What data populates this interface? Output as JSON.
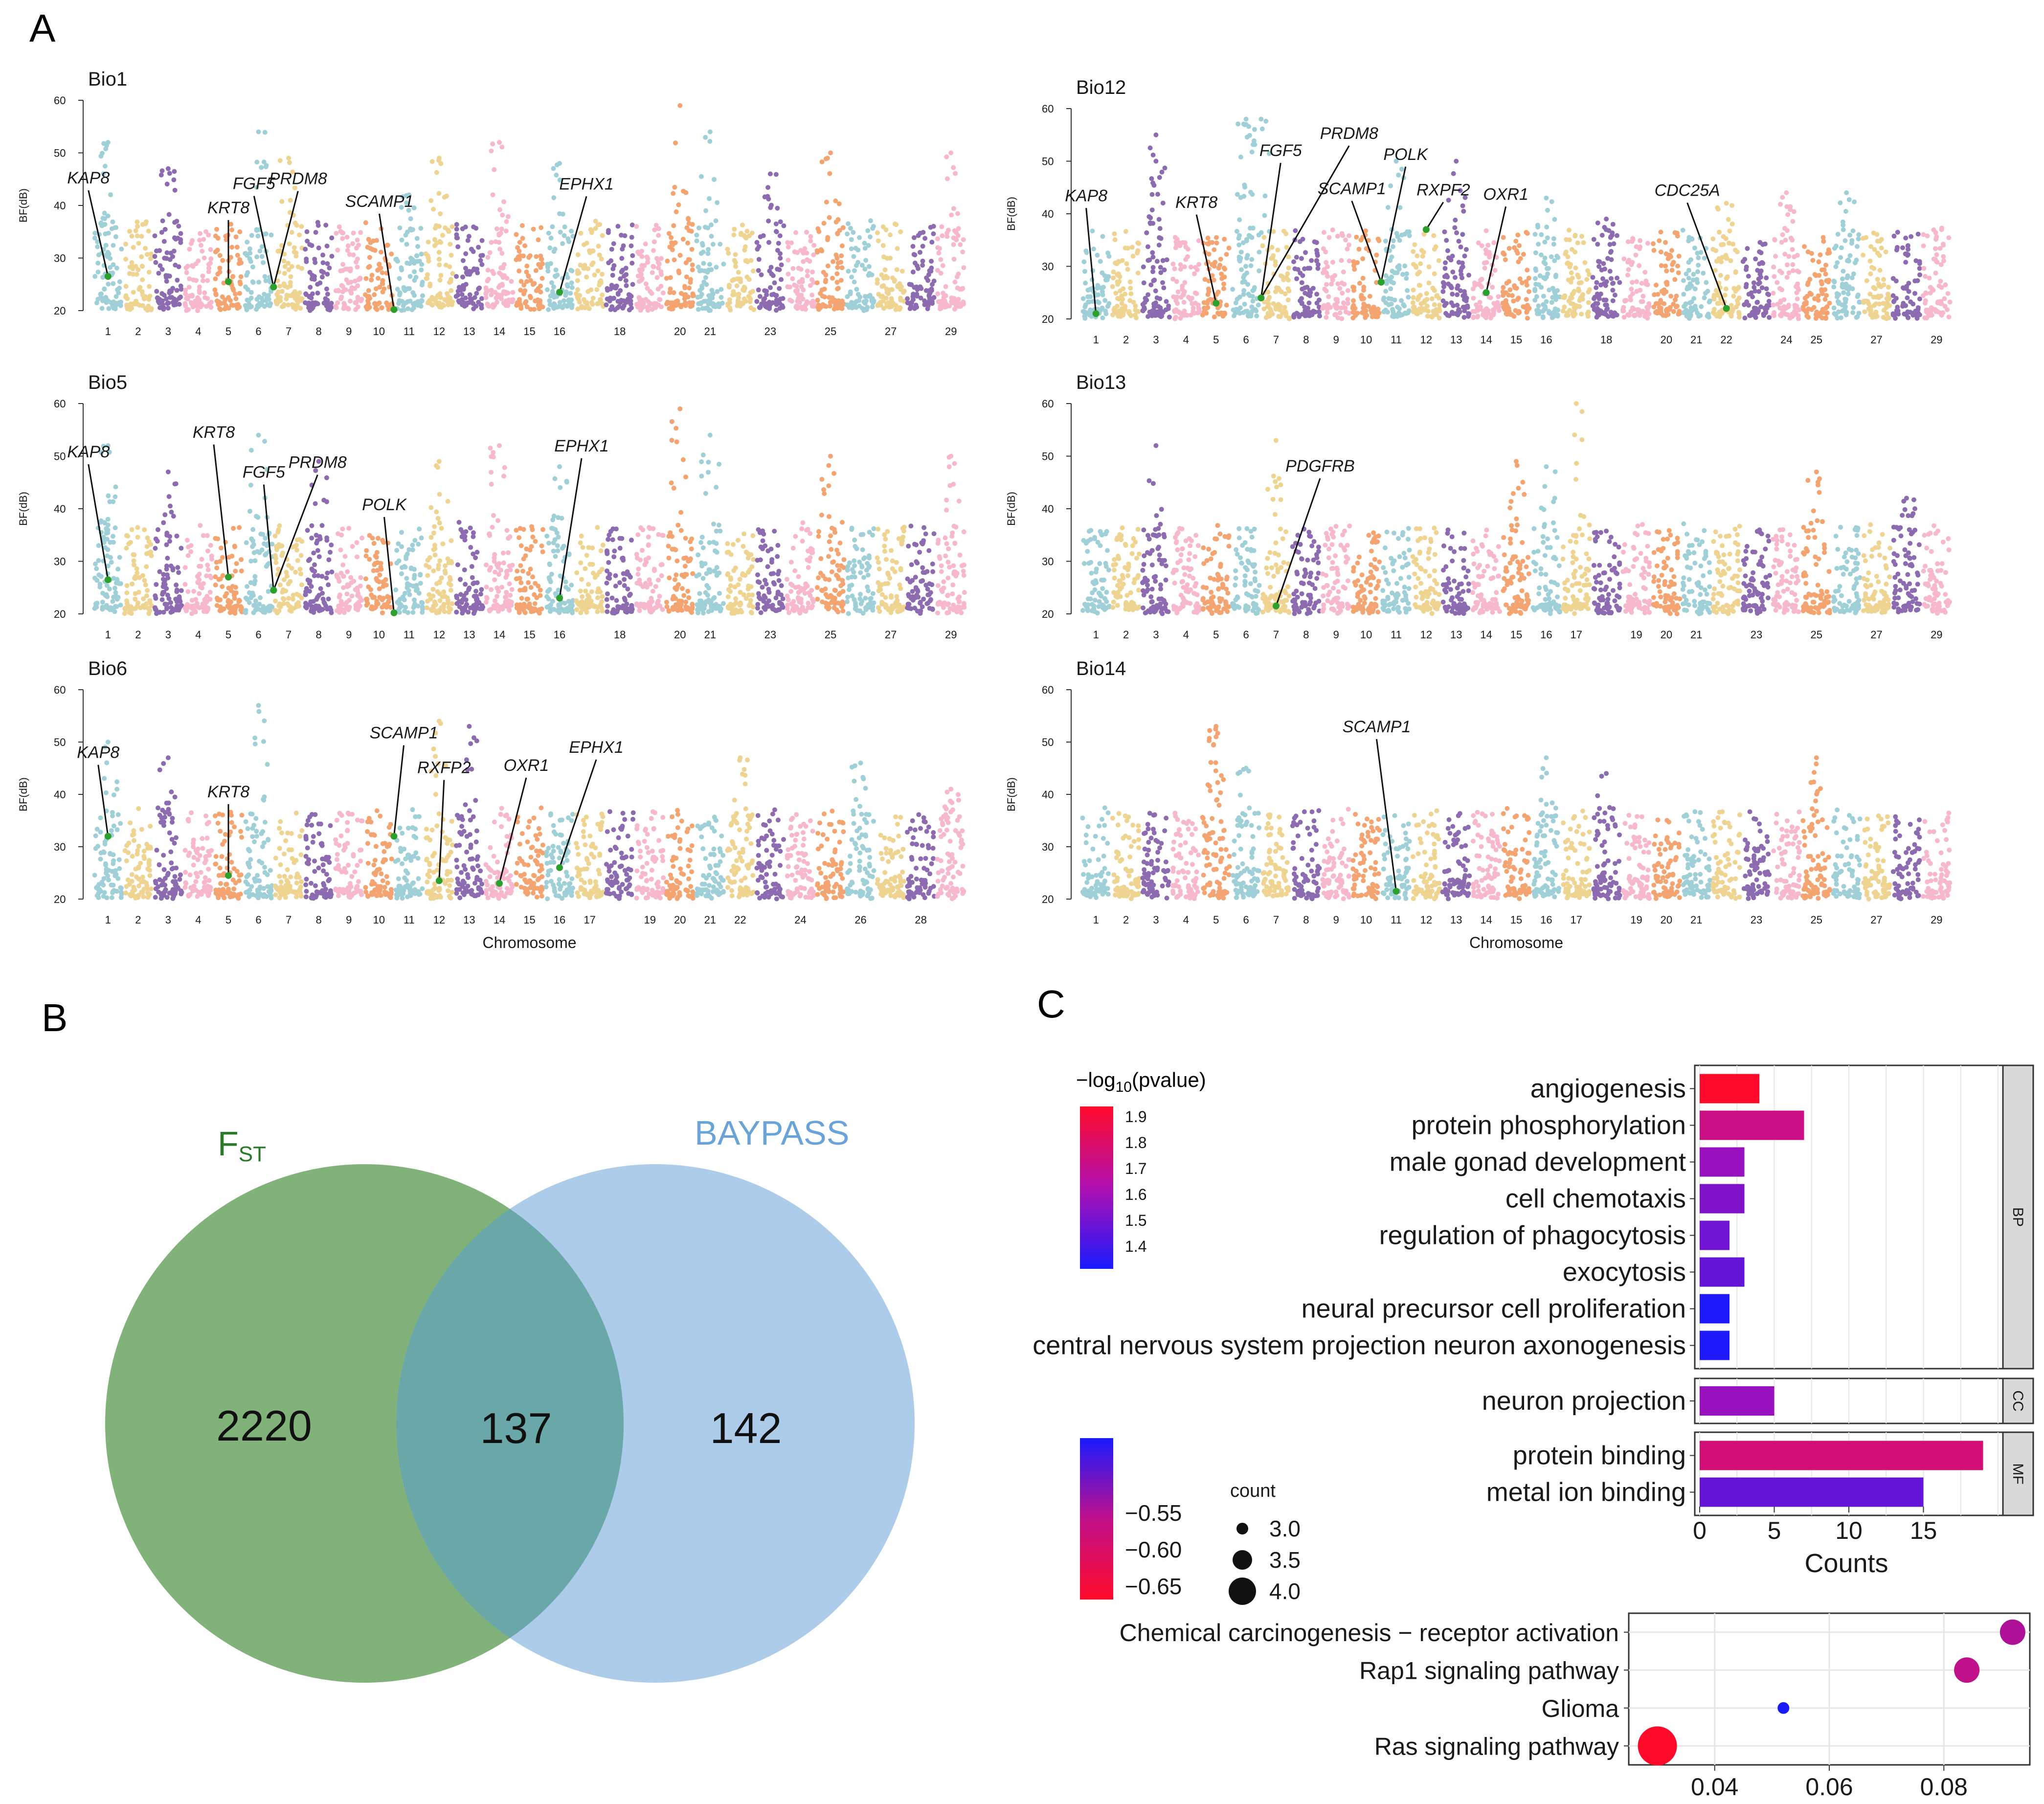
{
  "panel_labels": {
    "a": "A",
    "b": "B",
    "c": "C"
  },
  "colors": {
    "chrom_palette": [
      "#9fd0d8",
      "#efd390",
      "#8c6bb1",
      "#f7b8cf",
      "#f4a470"
    ],
    "fst_circle": "#6ba563",
    "baypass_circle": "#9ec3e6",
    "overlap": "#6aa7a8",
    "fst_label": "#2a7a2a",
    "baypass_label": "#6aa3d8",
    "gene_point": "#2ca02c"
  },
  "chart_data": [
    {
      "id": "bio1",
      "type": "scatter",
      "title": "Bio1",
      "ylabel": "BF(dB)",
      "xlabel": "",
      "ylim": [
        20,
        60
      ],
      "yticks": [
        20,
        30,
        40,
        50,
        60
      ],
      "xticks": [
        "1",
        "2",
        "3",
        "4",
        "5",
        "6",
        "7",
        "8",
        "9",
        "10",
        "11",
        "12",
        "13",
        "14",
        "15",
        "16",
        "18",
        "20",
        "21",
        "23",
        "25",
        "27",
        "29"
      ],
      "tick_pos": [
        1,
        2,
        3,
        4,
        5,
        6,
        7,
        8,
        9,
        10,
        11,
        12,
        13,
        14,
        15,
        16,
        18,
        20,
        21,
        23,
        25,
        27,
        29
      ],
      "n_chrom": 29,
      "peaks": [
        {
          "chrom": 1,
          "bf": 38
        },
        {
          "chrom": 1,
          "bf": 52
        },
        {
          "chrom": 3,
          "bf": 47
        },
        {
          "chrom": 6,
          "bf": 54
        },
        {
          "chrom": 7,
          "bf": 49
        },
        {
          "chrom": 11,
          "bf": 42
        },
        {
          "chrom": 12,
          "bf": 49
        },
        {
          "chrom": 14,
          "bf": 52
        },
        {
          "chrom": 16,
          "bf": 48
        },
        {
          "chrom": 20,
          "bf": 59
        },
        {
          "chrom": 21,
          "bf": 54
        },
        {
          "chrom": 23,
          "bf": 46
        },
        {
          "chrom": 25,
          "bf": 50
        },
        {
          "chrom": 29,
          "bf": 50
        }
      ],
      "genes": [
        {
          "name": "KAP8",
          "chrom": 1,
          "bf": 26.5
        },
        {
          "name": "KRT8",
          "chrom": 5,
          "bf": 25.5
        },
        {
          "name": "FGF5",
          "chrom": 6.5,
          "bf": 24.5
        },
        {
          "name": "PRDM8",
          "chrom": 6.5,
          "bf": 24.5
        },
        {
          "name": "SCAMP1",
          "chrom": 10.5,
          "bf": 20.2
        },
        {
          "name": "EPHX1",
          "chrom": 16,
          "bf": 23.5
        }
      ]
    },
    {
      "id": "bio12",
      "type": "scatter",
      "title": "Bio12",
      "ylabel": "BF(dB)",
      "xlabel": "",
      "ylim": [
        20,
        60
      ],
      "yticks": [
        20,
        30,
        40,
        50,
        60
      ],
      "xticks": [
        "1",
        "2",
        "3",
        "4",
        "5",
        "6",
        "7",
        "8",
        "9",
        "10",
        "11",
        "12",
        "13",
        "14",
        "15",
        "16",
        "18",
        "20",
        "21",
        "22",
        "24",
        "25",
        "27",
        "29"
      ],
      "tick_pos": [
        1,
        2,
        3,
        4,
        5,
        6,
        7,
        8,
        9,
        10,
        11,
        12,
        13,
        14,
        15,
        16,
        18,
        20,
        21,
        22,
        24,
        25,
        27,
        29
      ],
      "n_chrom": 29,
      "peaks": [
        {
          "chrom": 3,
          "bf": 55
        },
        {
          "chrom": 3,
          "bf": 50
        },
        {
          "chrom": 6,
          "bf": 58
        },
        {
          "chrom": 6,
          "bf": 57
        },
        {
          "chrom": 6.5,
          "bf": 58
        },
        {
          "chrom": 11,
          "bf": 50
        },
        {
          "chrom": 13,
          "bf": 50
        },
        {
          "chrom": 16,
          "bf": 43
        },
        {
          "chrom": 18,
          "bf": 39
        },
        {
          "chrom": 22,
          "bf": 42
        },
        {
          "chrom": 24,
          "bf": 44
        },
        {
          "chrom": 26,
          "bf": 44
        }
      ],
      "genes": [
        {
          "name": "KAP8",
          "chrom": 1,
          "bf": 21
        },
        {
          "name": "KRT8",
          "chrom": 5,
          "bf": 23
        },
        {
          "name": "FGF5",
          "chrom": 6.5,
          "bf": 24
        },
        {
          "name": "PRDM8",
          "chrom": 6.5,
          "bf": 24
        },
        {
          "name": "SCAMP1",
          "chrom": 10.5,
          "bf": 27
        },
        {
          "name": "POLK",
          "chrom": 10.5,
          "bf": 27
        },
        {
          "name": "RXPF2",
          "chrom": 12,
          "bf": 37
        },
        {
          "name": "OXR1",
          "chrom": 14,
          "bf": 25
        },
        {
          "name": "CDC25A",
          "chrom": 22,
          "bf": 22
        }
      ]
    },
    {
      "id": "bio5",
      "type": "scatter",
      "title": "Bio5",
      "ylabel": "BF(dB)",
      "xlabel": "",
      "ylim": [
        20,
        60
      ],
      "yticks": [
        20,
        30,
        40,
        50,
        60
      ],
      "xticks": [
        "1",
        "2",
        "3",
        "4",
        "5",
        "6",
        "7",
        "8",
        "9",
        "10",
        "11",
        "12",
        "13",
        "14",
        "15",
        "16",
        "18",
        "20",
        "21",
        "23",
        "25",
        "27",
        "29"
      ],
      "tick_pos": [
        1,
        2,
        3,
        4,
        5,
        6,
        7,
        8,
        9,
        10,
        11,
        12,
        13,
        14,
        15,
        16,
        18,
        20,
        21,
        23,
        25,
        27,
        29
      ],
      "n_chrom": 29,
      "peaks": [
        {
          "chrom": 1,
          "bf": 38
        },
        {
          "chrom": 1,
          "bf": 52
        },
        {
          "chrom": 3,
          "bf": 47
        },
        {
          "chrom": 6,
          "bf": 54
        },
        {
          "chrom": 8,
          "bf": 49
        },
        {
          "chrom": 12,
          "bf": 49
        },
        {
          "chrom": 14,
          "bf": 52
        },
        {
          "chrom": 16,
          "bf": 48
        },
        {
          "chrom": 20,
          "bf": 59
        },
        {
          "chrom": 21,
          "bf": 54
        },
        {
          "chrom": 25,
          "bf": 50
        },
        {
          "chrom": 29,
          "bf": 50
        }
      ],
      "genes": [
        {
          "name": "KAP8",
          "chrom": 1,
          "bf": 26.5
        },
        {
          "name": "KRT8",
          "chrom": 5,
          "bf": 27
        },
        {
          "name": "FGF5",
          "chrom": 6.5,
          "bf": 24.5
        },
        {
          "name": "PRDM8",
          "chrom": 6.5,
          "bf": 24.5
        },
        {
          "name": "POLK",
          "chrom": 10.5,
          "bf": 20.2
        },
        {
          "name": "EPHX1",
          "chrom": 16,
          "bf": 23
        }
      ]
    },
    {
      "id": "bio13",
      "type": "scatter",
      "title": "Bio13",
      "ylabel": "BF(dB)",
      "xlabel": "",
      "ylim": [
        20,
        60
      ],
      "yticks": [
        20,
        30,
        40,
        50,
        60
      ],
      "xticks": [
        "1",
        "2",
        "3",
        "4",
        "5",
        "6",
        "7",
        "8",
        "9",
        "10",
        "11",
        "12",
        "13",
        "14",
        "15",
        "16",
        "17",
        "19",
        "20",
        "21",
        "23",
        "25",
        "27",
        "29"
      ],
      "tick_pos": [
        1,
        2,
        3,
        4,
        5,
        6,
        7,
        8,
        9,
        10,
        11,
        12,
        13,
        14,
        15,
        16,
        17,
        19,
        20,
        21,
        23,
        25,
        27,
        29
      ],
      "n_chrom": 29,
      "peaks": [
        {
          "chrom": 3,
          "bf": 52
        },
        {
          "chrom": 7,
          "bf": 53
        },
        {
          "chrom": 15,
          "bf": 49
        },
        {
          "chrom": 16,
          "bf": 48
        },
        {
          "chrom": 17,
          "bf": 60
        },
        {
          "chrom": 25,
          "bf": 47
        },
        {
          "chrom": 28,
          "bf": 42
        }
      ],
      "genes": [
        {
          "name": "PDGFRB",
          "chrom": 7,
          "bf": 21.5
        }
      ]
    },
    {
      "id": "bio6",
      "type": "scatter",
      "title": "Bio6",
      "ylabel": "BF(dB)",
      "xlabel": "Chromosome",
      "ylim": [
        20,
        60
      ],
      "yticks": [
        20,
        30,
        40,
        50,
        60
      ],
      "xticks": [
        "1",
        "2",
        "3",
        "4",
        "5",
        "6",
        "7",
        "8",
        "9",
        "10",
        "11",
        "12",
        "13",
        "14",
        "15",
        "16",
        "17",
        "19",
        "20",
        "21",
        "22",
        "24",
        "26",
        "28"
      ],
      "tick_pos": [
        1,
        2,
        3,
        4,
        5,
        6,
        7,
        8,
        9,
        10,
        11,
        12,
        13,
        14,
        15,
        16,
        17,
        19,
        20,
        21,
        22,
        24,
        26,
        28
      ],
      "n_chrom": 29,
      "peaks": [
        {
          "chrom": 1,
          "bf": 50
        },
        {
          "chrom": 3,
          "bf": 47
        },
        {
          "chrom": 6,
          "bf": 57
        },
        {
          "chrom": 12,
          "bf": 54
        },
        {
          "chrom": 13,
          "bf": 53
        },
        {
          "chrom": 22,
          "bf": 47
        },
        {
          "chrom": 26,
          "bf": 46
        },
        {
          "chrom": 29,
          "bf": 41
        }
      ],
      "genes": [
        {
          "name": "KAP8",
          "chrom": 1,
          "bf": 32
        },
        {
          "name": "KRT8",
          "chrom": 5,
          "bf": 24.5
        },
        {
          "name": "SCAMP1",
          "chrom": 10.5,
          "bf": 32
        },
        {
          "name": "RXFP2",
          "chrom": 12,
          "bf": 23.5
        },
        {
          "name": "OXR1",
          "chrom": 14,
          "bf": 23
        },
        {
          "name": "EPHX1",
          "chrom": 16,
          "bf": 26
        }
      ]
    },
    {
      "id": "bio14",
      "type": "scatter",
      "title": "Bio14",
      "ylabel": "BF(dB)",
      "xlabel": "Chromosome",
      "ylim": [
        20,
        60
      ],
      "yticks": [
        20,
        30,
        40,
        50,
        60
      ],
      "xticks": [
        "1",
        "2",
        "3",
        "4",
        "5",
        "6",
        "7",
        "8",
        "9",
        "10",
        "11",
        "12",
        "13",
        "14",
        "15",
        "16",
        "17",
        "19",
        "20",
        "21",
        "23",
        "25",
        "27",
        "29"
      ],
      "tick_pos": [
        1,
        2,
        3,
        4,
        5,
        6,
        7,
        8,
        9,
        10,
        11,
        12,
        13,
        14,
        15,
        16,
        17,
        19,
        20,
        21,
        23,
        25,
        27,
        29
      ],
      "n_chrom": 29,
      "peaks": [
        {
          "chrom": 5,
          "bf": 53
        },
        {
          "chrom": 5,
          "bf": 51
        },
        {
          "chrom": 6,
          "bf": 45
        },
        {
          "chrom": 16,
          "bf": 47
        },
        {
          "chrom": 18,
          "bf": 44
        },
        {
          "chrom": 25,
          "bf": 47
        }
      ],
      "genes": [
        {
          "name": "SCAMP1",
          "chrom": 11,
          "bf": 21.5
        }
      ]
    },
    {
      "id": "venn",
      "type": "venn",
      "sets": [
        {
          "name": "F",
          "subscript": "ST",
          "only": "2220"
        },
        {
          "name": "BAYPASS",
          "only": "142"
        }
      ],
      "intersection": "137"
    },
    {
      "id": "go_bar",
      "type": "bar",
      "orientation": "horizontal",
      "xlabel": "Counts",
      "xlim": [
        0,
        20
      ],
      "xticks": [
        0,
        5,
        10,
        15
      ],
      "legend_title": "−log10(pvalue)",
      "legend_title_parts": {
        "pre": "−log",
        "sub": "10",
        "post": "(pvalue)"
      },
      "legend_ticks": [
        "1.9",
        "1.8",
        "1.7",
        "1.6",
        "1.5",
        "1.4"
      ],
      "color_range": [
        1.35,
        1.95
      ],
      "groups": [
        {
          "label": "BP",
          "terms": [
            {
              "term": "angiogenesis",
              "count": 4,
              "p": 1.95
            },
            {
              "term": "protein phosphorylation",
              "count": 7,
              "p": 1.75
            },
            {
              "term": "male gonad development",
              "count": 3,
              "p": 1.6
            },
            {
              "term": "cell chemotaxis",
              "count": 3,
              "p": 1.55
            },
            {
              "term": "regulation of phagocytosis",
              "count": 2,
              "p": 1.52
            },
            {
              "term": "exocytosis",
              "count": 3,
              "p": 1.5
            },
            {
              "term": "neural precursor cell proliferation",
              "count": 2,
              "p": 1.36
            },
            {
              "term": "central nervous system projection neuron axonogenesis",
              "count": 2,
              "p": 1.36
            }
          ]
        },
        {
          "label": "CC",
          "terms": [
            {
              "term": "neuron projection",
              "count": 5,
              "p": 1.6
            }
          ]
        },
        {
          "label": "MF",
          "terms": [
            {
              "term": "protein binding",
              "count": 19,
              "p": 1.78
            },
            {
              "term": "metal ion binding",
              "count": 15,
              "p": 1.5
            }
          ]
        }
      ]
    },
    {
      "id": "kegg_dot",
      "type": "scatter",
      "xlim": [
        0.025,
        0.095
      ],
      "xticks": [
        "0.04",
        "0.06",
        "0.08"
      ],
      "xtick_vals": [
        0.04,
        0.06,
        0.08
      ],
      "color_legend_ticks": [
        "−0.55",
        "−0.60",
        "−0.65"
      ],
      "color_range": [
        -0.68,
        -0.5
      ],
      "size_legend_title": "count",
      "size_legend": [
        "3.0",
        "3.5",
        "4.0"
      ],
      "points": [
        {
          "term": "Chemical carcinogenesis − receptor activation",
          "x": 0.092,
          "count": 3.5,
          "color": -0.58
        },
        {
          "term": "Rap1 signaling pathway",
          "x": 0.084,
          "count": 3.5,
          "color": -0.59
        },
        {
          "term": "Glioma",
          "x": 0.052,
          "count": 3.0,
          "color": -0.5
        },
        {
          "term": "Ras signaling pathway",
          "x": 0.03,
          "count": 4.0,
          "color": -0.68
        }
      ]
    }
  ]
}
